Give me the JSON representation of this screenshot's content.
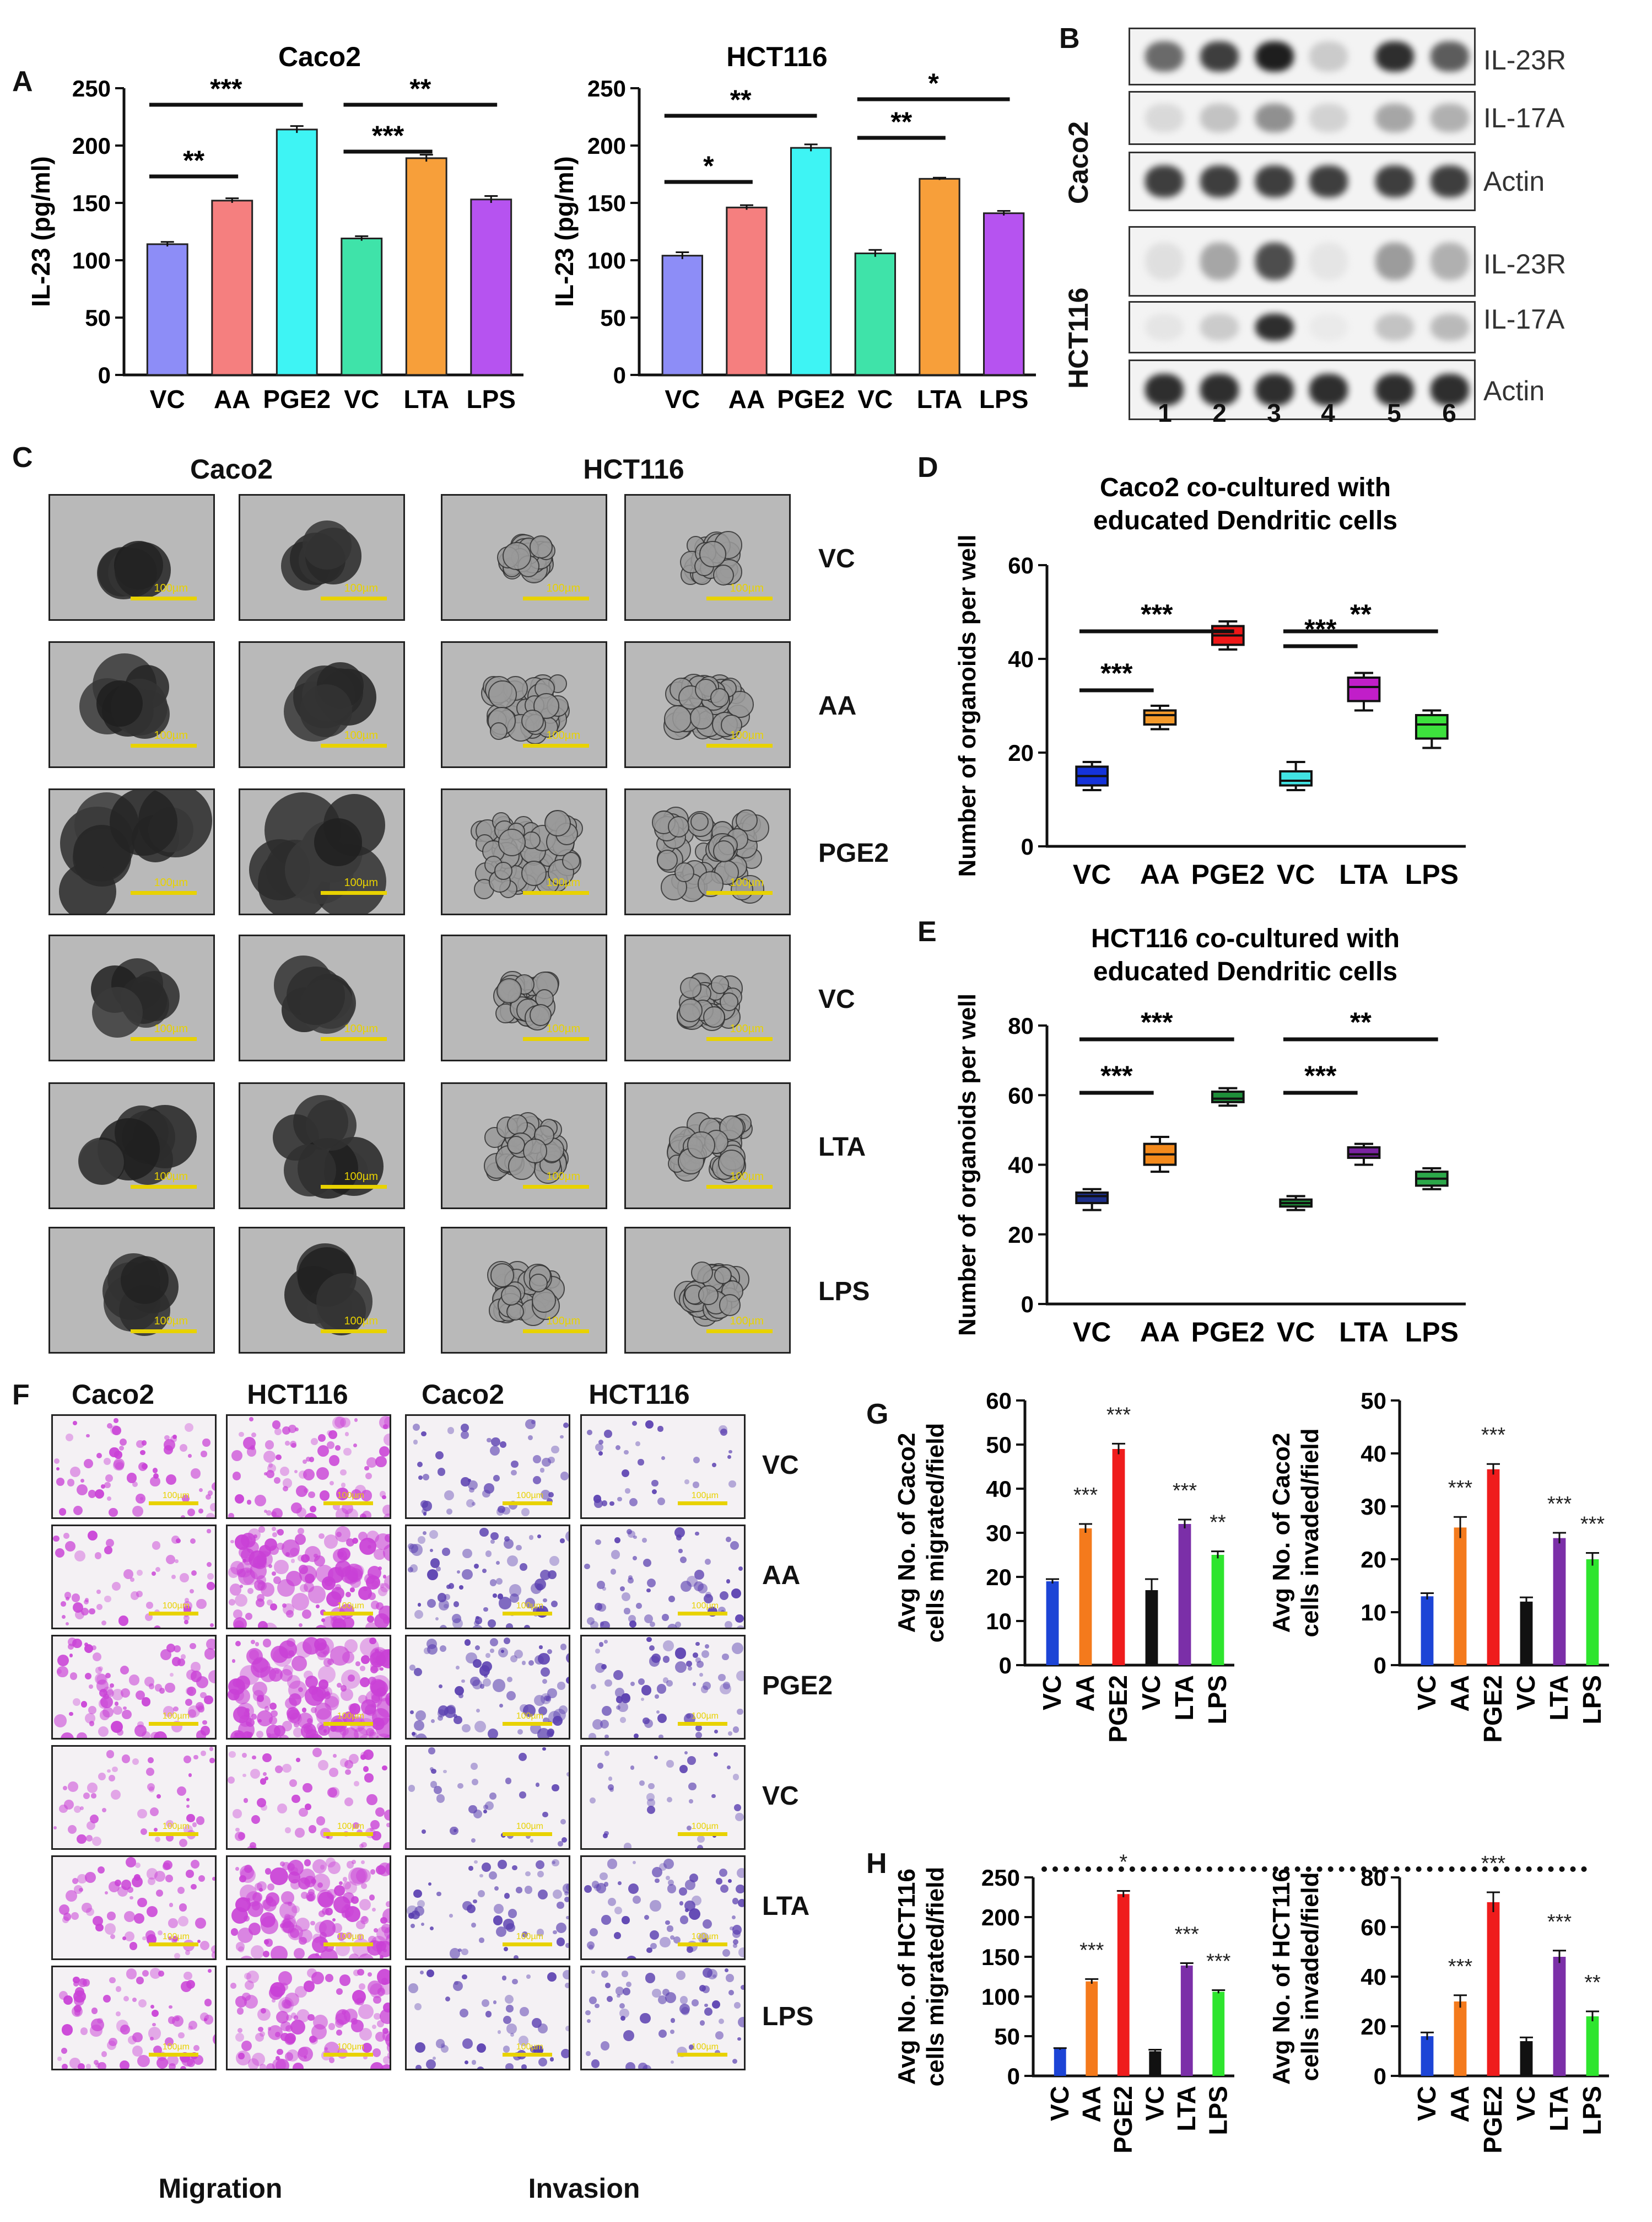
{
  "panels": {
    "A": "A",
    "B": "B",
    "C": "C",
    "D": "D",
    "E": "E",
    "F": "F",
    "G": "G",
    "H": "H"
  },
  "conditions": [
    "VC",
    "AA",
    "PGE2",
    "VC",
    "LTA",
    "LPS"
  ],
  "colors": {
    "a_bars": [
      "#8d8df7",
      "#f57f7f",
      "#3ef4f4",
      "#3fe3a9",
      "#f79f3a",
      "#b653f0"
    ],
    "gh_bars": [
      "#1c44d6",
      "#f47a1c",
      "#ef1c1c",
      "#111111",
      "#7b2fa8",
      "#2ee52e"
    ],
    "d_boxes": [
      "#1533d9",
      "#f49a2b",
      "#ee1818",
      "#41e3e3",
      "#c11ec9",
      "#3de13d"
    ],
    "e_boxes": [
      "#1d2f8a",
      "#f48a1c",
      "#1f8f3a",
      "#1f8f3a",
      "#7a23a1",
      "#2ca84a"
    ],
    "invasion_stain": "#5a3fb0",
    "migration_stain": "#c940d6"
  },
  "chart_data": [
    {
      "id": "A-caco2",
      "type": "bar",
      "title": "Caco2",
      "ylabel": "IL-23 (pg/ml)",
      "categories": [
        "VC",
        "AA",
        "PGE2",
        "VC",
        "LTA",
        "LPS"
      ],
      "values": [
        114,
        152,
        214,
        119,
        189,
        153
      ],
      "errors": [
        2,
        2,
        3,
        2,
        3,
        3
      ],
      "ylim": [
        0,
        250
      ],
      "yticks": [
        "0",
        "50",
        "100",
        "150",
        "200",
        "250"
      ],
      "significance": [
        {
          "from": 0,
          "to": 1,
          "label": "**"
        },
        {
          "from": 0,
          "to": 2,
          "label": "***"
        },
        {
          "from": 3,
          "to": 4,
          "label": "***"
        },
        {
          "from": 3,
          "to": 5,
          "label": "**"
        }
      ]
    },
    {
      "id": "A-hct116",
      "type": "bar",
      "title": "HCT116",
      "ylabel": "IL-23 (pg/ml)",
      "categories": [
        "VC",
        "AA",
        "PGE2",
        "VC",
        "LTA",
        "LPS"
      ],
      "values": [
        104,
        146,
        198,
        106,
        171,
        141
      ],
      "errors": [
        3,
        2,
        3,
        3,
        1,
        2
      ],
      "ylim": [
        0,
        250
      ],
      "yticks": [
        "0",
        "50",
        "100",
        "150",
        "200",
        "250"
      ],
      "significance": [
        {
          "from": 0,
          "to": 1,
          "label": "*"
        },
        {
          "from": 0,
          "to": 2,
          "label": "**"
        },
        {
          "from": 3,
          "to": 4,
          "label": "**"
        },
        {
          "from": 3,
          "to": 5,
          "label": "*"
        }
      ]
    },
    {
      "id": "D",
      "type": "box",
      "title_lines": [
        "Caco2 co-cultured with",
        "educated Dendritic cells"
      ],
      "ylabel": "Number of organoids per well",
      "categories": [
        "VC",
        "AA",
        "PGE2",
        "VC",
        "LTA",
        "LPS"
      ],
      "boxes": [
        {
          "min": 12,
          "q1": 13,
          "median": 15,
          "q3": 17,
          "max": 18
        },
        {
          "min": 25,
          "q1": 26,
          "median": 28,
          "q3": 29,
          "max": 30
        },
        {
          "min": 42,
          "q1": 43,
          "median": 45,
          "q3": 47,
          "max": 48
        },
        {
          "min": 12,
          "q1": 13,
          "median": 14,
          "q3": 16,
          "max": 18
        },
        {
          "min": 29,
          "q1": 31,
          "median": 34,
          "q3": 36,
          "max": 37
        },
        {
          "min": 21,
          "q1": 23,
          "median": 26,
          "q3": 28,
          "max": 29
        }
      ],
      "ylim": [
        0,
        60
      ],
      "yticks": [
        "0",
        "20",
        "40",
        "60"
      ],
      "significance": [
        {
          "from": 0,
          "to": 1,
          "label": "***"
        },
        {
          "from": 0,
          "to": 2,
          "label": "***"
        },
        {
          "from": 3,
          "to": 4,
          "label": "***"
        },
        {
          "from": 3,
          "to": 5,
          "label": "**"
        }
      ]
    },
    {
      "id": "E",
      "type": "box",
      "title_lines": [
        "HCT116 co-cultured with",
        "educated Dendritic cells"
      ],
      "ylabel": "Number of organoids per well",
      "categories": [
        "VC",
        "AA",
        "PGE2",
        "VC",
        "LTA",
        "LPS"
      ],
      "boxes": [
        {
          "min": 27,
          "q1": 29,
          "median": 31,
          "q3": 32,
          "max": 33
        },
        {
          "min": 38,
          "q1": 40,
          "median": 43,
          "q3": 46,
          "max": 48
        },
        {
          "min": 57,
          "q1": 58,
          "median": 59,
          "q3": 61,
          "max": 62
        },
        {
          "min": 27,
          "q1": 28,
          "median": 29,
          "q3": 30,
          "max": 31
        },
        {
          "min": 40,
          "q1": 42,
          "median": 43,
          "q3": 45,
          "max": 46
        },
        {
          "min": 33,
          "q1": 34,
          "median": 36,
          "q3": 38,
          "max": 39
        }
      ],
      "ylim": [
        0,
        80
      ],
      "yticks": [
        "0",
        "20",
        "40",
        "60",
        "80"
      ],
      "significance": [
        {
          "from": 0,
          "to": 1,
          "label": "***"
        },
        {
          "from": 0,
          "to": 2,
          "label": "***"
        },
        {
          "from": 3,
          "to": 4,
          "label": "***"
        },
        {
          "from": 3,
          "to": 5,
          "label": "**"
        }
      ]
    },
    {
      "id": "G-migrated",
      "type": "bar",
      "ylabel_lines": [
        "Avg No. of Caco2",
        "cells migrated/field"
      ],
      "categories": [
        "VC",
        "AA",
        "PGE2",
        "VC",
        "LTA",
        "LPS"
      ],
      "values": [
        19,
        31,
        49,
        17,
        32,
        25
      ],
      "errors": [
        0.5,
        1,
        1.2,
        2.5,
        1,
        0.8
      ],
      "stars": [
        "",
        "***",
        "***",
        "",
        "***",
        "**"
      ],
      "ylim": [
        0,
        60
      ],
      "yticks": [
        "0",
        "10",
        "20",
        "30",
        "40",
        "50",
        "60"
      ]
    },
    {
      "id": "G-invaded",
      "type": "bar",
      "ylabel_lines": [
        "Avg No. of Caco2",
        "cells invaded/field"
      ],
      "categories": [
        "VC",
        "AA",
        "PGE2",
        "VC",
        "LTA",
        "LPS"
      ],
      "values": [
        13,
        26,
        37,
        12,
        24,
        20
      ],
      "errors": [
        0.6,
        2,
        1,
        0.8,
        1,
        1.2
      ],
      "stars": [
        "",
        "***",
        "***",
        "",
        "***",
        "***"
      ],
      "ylim": [
        0,
        50
      ],
      "yticks": [
        "0",
        "10",
        "20",
        "30",
        "40",
        "50"
      ]
    },
    {
      "id": "H-migrated",
      "type": "bar",
      "ylabel_lines": [
        "Avg No. of HCT116",
        "cells migrated/field"
      ],
      "categories": [
        "VC",
        "AA",
        "PGE2",
        "VC",
        "LTA",
        "LPS"
      ],
      "values": [
        34,
        119,
        229,
        31,
        139,
        106
      ],
      "errors": [
        1,
        3,
        4,
        2,
        3,
        2
      ],
      "stars": [
        "",
        "***",
        "*",
        "",
        "***",
        "***"
      ],
      "ylim": [
        0,
        250
      ],
      "yticks": [
        "0",
        "50",
        "100",
        "150",
        "200",
        "250"
      ]
    },
    {
      "id": "H-invaded",
      "type": "bar",
      "ylabel_lines": [
        "Avg No. of HCT116",
        "cells invaded/field"
      ],
      "categories": [
        "VC",
        "AA",
        "PGE2",
        "VC",
        "LTA",
        "LPS"
      ],
      "values": [
        16,
        30,
        70,
        14,
        48,
        24
      ],
      "errors": [
        1.5,
        2.5,
        4,
        1.5,
        2.5,
        2
      ],
      "stars": [
        "",
        "***",
        "***",
        "",
        "***",
        "**"
      ],
      "ylim": [
        0,
        80
      ],
      "yticks": [
        "0",
        "20",
        "40",
        "60",
        "80"
      ]
    }
  ],
  "blot": {
    "caco2_label": "Caco2",
    "hct116_label": "HCT116",
    "caco2_rows": [
      "IL-23R",
      "IL-17A",
      "Actin"
    ],
    "hct116_rows": [
      "IL-23R",
      "IL-17A",
      "Actin"
    ],
    "lanes": [
      "1",
      "2",
      "3",
      "4",
      "5",
      "6"
    ],
    "intensity": {
      "caco2_il23r": [
        0.75,
        0.9,
        1.0,
        0.3,
        0.95,
        0.8
      ],
      "caco2_il17a": [
        0.2,
        0.35,
        0.6,
        0.25,
        0.5,
        0.45
      ],
      "caco2_actin": [
        0.9,
        0.9,
        0.9,
        0.9,
        0.9,
        0.9
      ],
      "hct116_il23r": [
        0.15,
        0.5,
        0.85,
        0.1,
        0.55,
        0.45
      ],
      "hct116_il17a": [
        0.1,
        0.3,
        0.95,
        0.05,
        0.35,
        0.4
      ],
      "hct116_actin": [
        0.95,
        0.95,
        0.95,
        0.95,
        0.95,
        0.95
      ]
    }
  },
  "panelC": {
    "col_caco2": "Caco2",
    "col_hct116": "HCT116",
    "rows": [
      "VC",
      "AA",
      "PGE2",
      "VC",
      "LTA",
      "LPS"
    ],
    "scale_label": "100µm"
  },
  "panelF": {
    "col_labels": [
      "Caco2",
      "HCT116",
      "Caco2",
      "HCT116"
    ],
    "rows": [
      "VC",
      "AA",
      "PGE2",
      "VC",
      "LTA",
      "LPS"
    ],
    "footer_migration": "Migration",
    "footer_invasion": "Invasion",
    "scale_label": "100µm",
    "migration_density": {
      "caco2": [
        0.3,
        0.25,
        0.45,
        0.2,
        0.3,
        0.4
      ],
      "hct116": [
        0.45,
        0.8,
        0.95,
        0.3,
        0.8,
        0.6
      ]
    },
    "invasion_density": {
      "caco2": [
        0.2,
        0.35,
        0.4,
        0.1,
        0.25,
        0.2
      ],
      "hct116": [
        0.08,
        0.25,
        0.3,
        0.08,
        0.3,
        0.25
      ]
    }
  }
}
